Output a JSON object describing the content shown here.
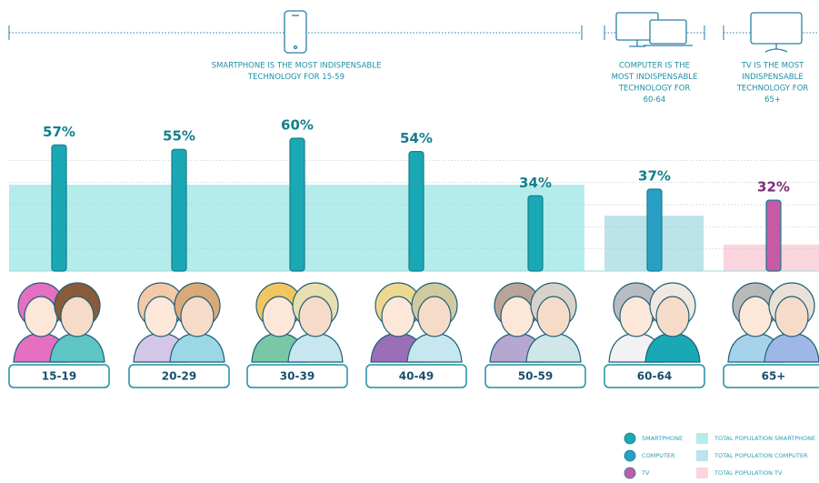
{
  "chart_data": {
    "type": "bar",
    "categories": [
      "15-19",
      "20-29",
      "30-39",
      "40-49",
      "50-59",
      "60-64",
      "65+"
    ],
    "values": [
      57,
      55,
      60,
      54,
      34,
      37,
      32
    ],
    "value_labels": [
      "57%",
      "55%",
      "60%",
      "54%",
      "34%",
      "37%",
      "32%"
    ],
    "colors": [
      "#1aa8b4",
      "#1aa8b4",
      "#1aa8b4",
      "#1aa8b4",
      "#1aa8b4",
      "#2a9fc6",
      "#c65aa6"
    ],
    "population": [
      39,
      39,
      39,
      39,
      39,
      25,
      12
    ],
    "population_colors": [
      "#b4ecec",
      "#b4ecec",
      "#b4ecec",
      "#b4ecec",
      "#b4ecec",
      "#bce2ea",
      "#fbd5dd"
    ],
    "ylim": [
      0,
      60
    ],
    "ygrid": [
      10,
      20,
      30,
      40,
      50
    ],
    "annotations": [
      [
        "SMARTPHONE IS THE MOST INDISPENSABLE",
        "TECHNOLOGY FOR 15-59"
      ],
      [
        "COMPUTER IS THE",
        "MOST INDISPENSABLE",
        "TECHNOLOGY FOR",
        "60-64"
      ],
      [
        "TV IS THE MOST",
        "INDISPENSABLE",
        "TECHNOLOGY FOR",
        "65+"
      ]
    ],
    "legend": [
      {
        "name": "SMARTPHONE",
        "color": "#1aa8b4"
      },
      {
        "name": "TOTAL POPULATION SMARTPHONE",
        "color": "#b4ecec"
      },
      {
        "name": "COMPUTER",
        "color": "#2a9fc6"
      },
      {
        "name": "TOTAL POPULATION COMPUTER",
        "color": "#bce2ea"
      },
      {
        "name": "TV",
        "color": "#c65aa6"
      },
      {
        "name": "TOTAL POPULATION TV",
        "color": "#fbd5dd"
      }
    ]
  }
}
